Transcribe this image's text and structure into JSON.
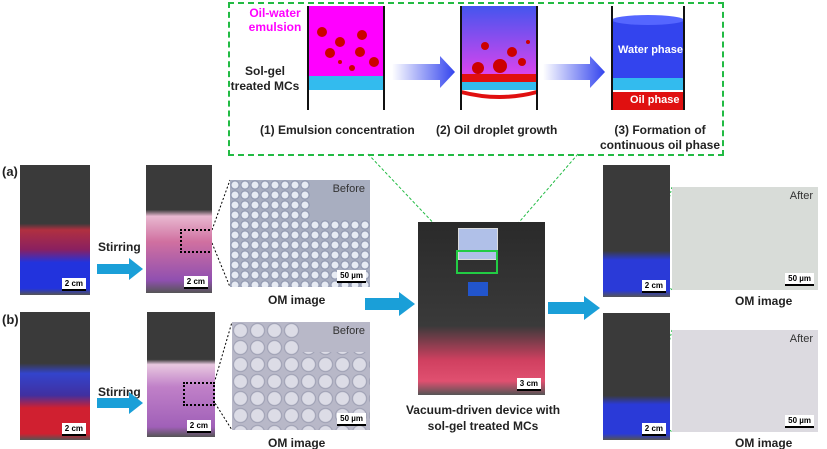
{
  "panel_labels": {
    "a": "(a)",
    "b": "(b)"
  },
  "schematic": {
    "oil_water_emulsion": "Oil-water emulsion",
    "sol_gel_mcs": "Sol-gel treated MCs",
    "water_phase": "Water phase",
    "oil_phase": "Oil phase",
    "step1": "(1) Emulsion concentration",
    "step2": "(2) Oil droplet growth",
    "step3_line1": "(3) Formation of",
    "step3_line2": "continuous oil phase"
  },
  "stirring": "Stirring",
  "scale_flask": "2 cm",
  "scale_device": "3 cm",
  "scale_om": "50 µm",
  "before": "Before",
  "after": "After",
  "om_image": "OM image",
  "device_caption_line1": "Vacuum-driven  device with",
  "device_caption_line2": "sol-gel treated MCs",
  "colors": {
    "dashed_box": "#22bb44",
    "arrow": "#1a9fd8",
    "emulsion": "#ff00ff",
    "water": "#3344ee",
    "oil": "#e01010",
    "mcs": "#33bbee"
  }
}
